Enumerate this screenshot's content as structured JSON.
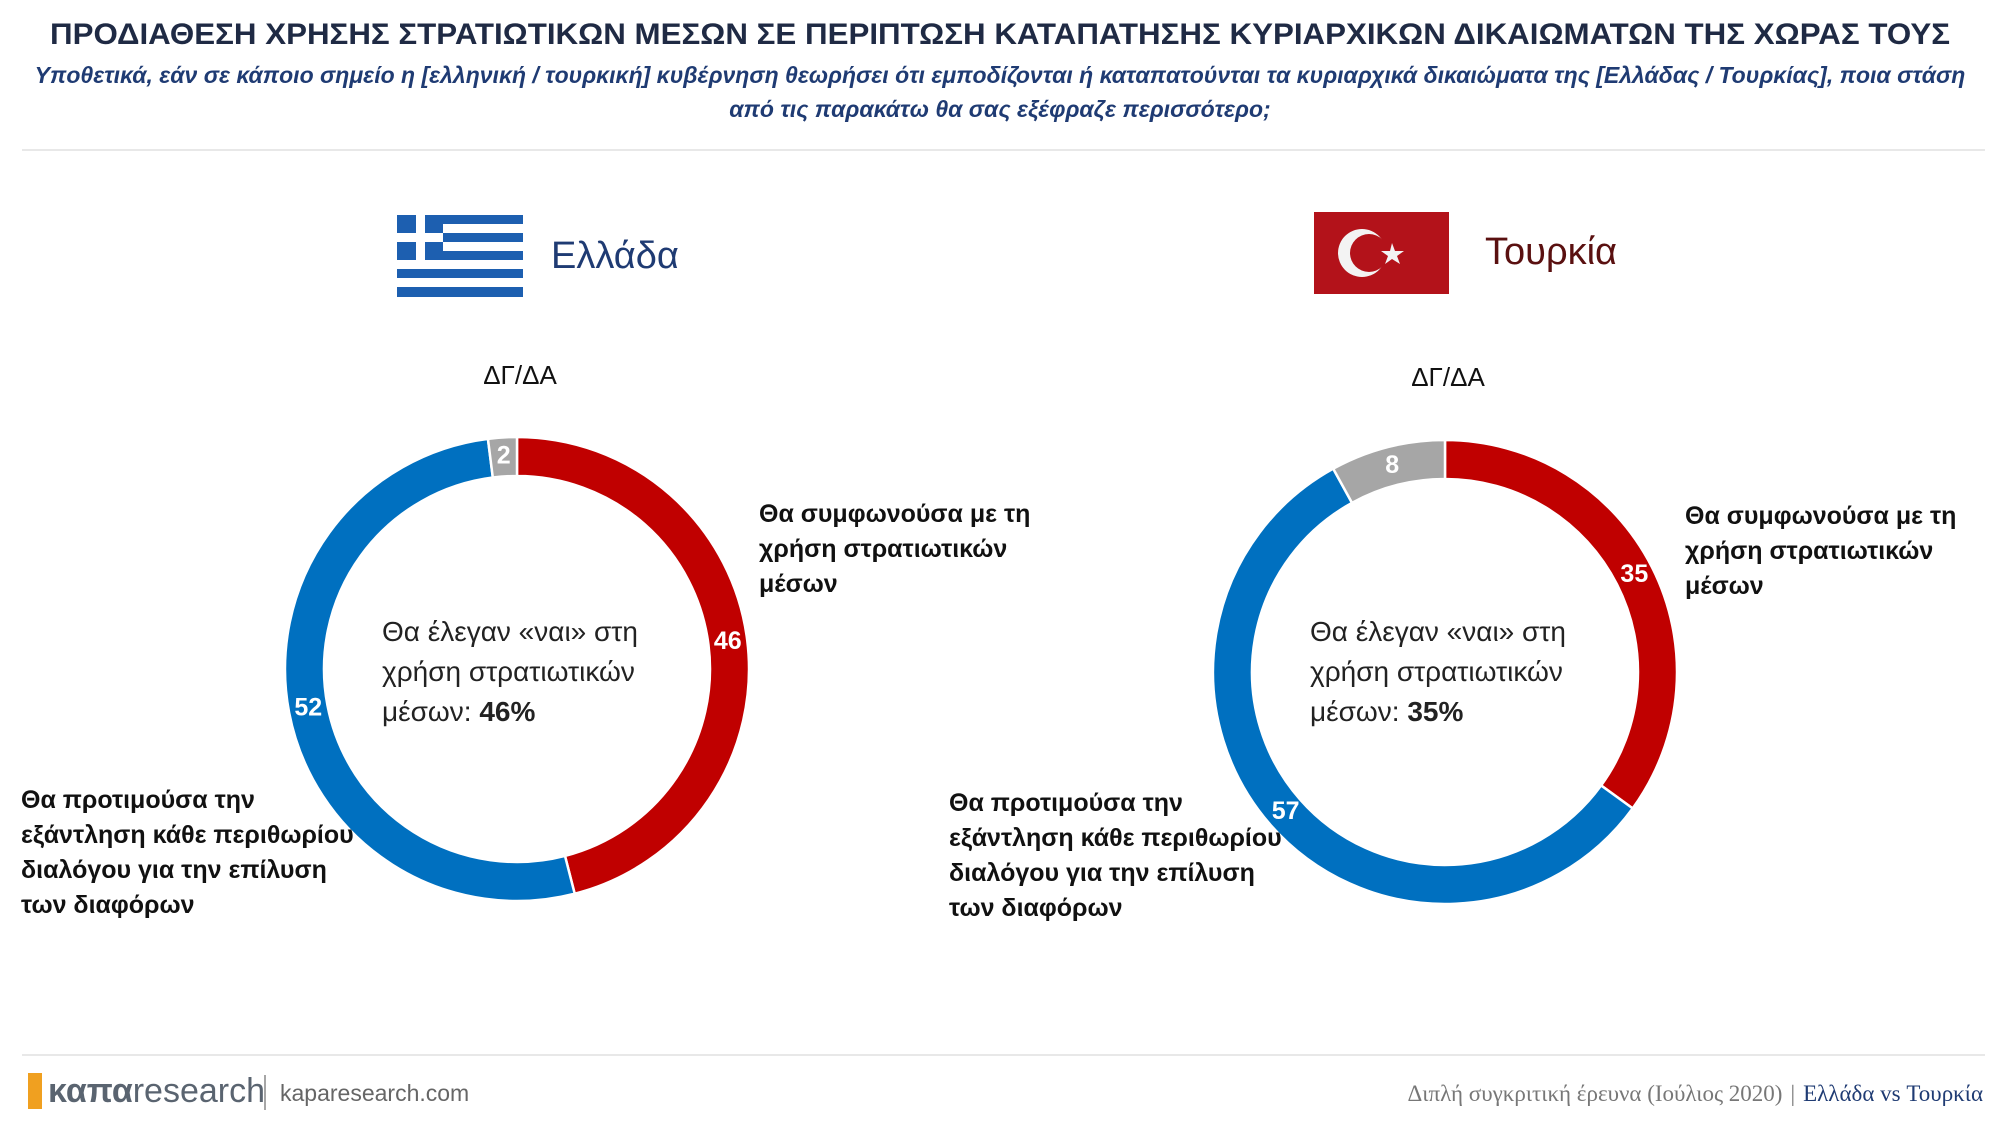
{
  "header": {
    "title": "ΠΡΟΔΙΑΘΕΣΗ ΧΡΗΣΗΣ ΣΤΡΑΤΙΩΤΙΚΩΝ ΜΕΣΩΝ ΣΕ ΠΕΡΙΠΤΩΣΗ ΚΑΤΑΠΑΤΗΣΗΣ ΚΥΡΙΑΡΧΙΚΩΝ ΔΙΚΑΙΩΜΑΤΩΝ ΤΗΣ ΧΩΡΑΣ ΤΟΥΣ",
    "subtitle": "Υποθετικά, εάν σε κάποιο σημείο η [ελληνική / τουρκική] κυβέρνηση θεωρήσει ότι εμποδίζονται ή καταπατούνται τα κυριαρχικά δικαιώματα της [Ελλάδας / Τουρκίας], ποια στάση από τις παρακάτω θα σας εξέφραζε περισσότερο;"
  },
  "chart_data": [
    {
      "type": "pie",
      "title": "Ελλάδα",
      "categories": [
        "Θα συμφωνούσα με τη χρήση στρατιωτικών μέσων",
        "Θα προτιμούσα την εξάντληση κάθε περιθωρίου διαλόγου για την επίλυση των διαφόρων",
        "ΔΓ/ΔΑ"
      ],
      "values": [
        46,
        52,
        2
      ],
      "colors": [
        "#c00000",
        "#0070c0",
        "#a6a6a6"
      ],
      "center_text": "Θα έλεγαν «ναι» στη χρήση στρατιωτικών μέσων:",
      "center_value_label": "46%"
    },
    {
      "type": "pie",
      "title": "Τουρκία",
      "categories": [
        "Θα συμφωνούσα με τη χρήση στρατιωτικών μέσων",
        "Θα προτιμούσα την εξάντληση κάθε περιθωρίου διαλόγου για την επίλυση των διαφόρων",
        "ΔΓ/ΔΑ"
      ],
      "values": [
        35,
        57,
        8
      ],
      "colors": [
        "#c00000",
        "#0070c0",
        "#a6a6a6"
      ],
      "center_text": "Θα έλεγαν «ναι» στη χρήση στρατιωτικών μέσων:",
      "center_value_label": "35%"
    }
  ],
  "footer": {
    "logo_bold": "καπα",
    "logo_light": "research",
    "website": "kaparesearch.com",
    "survey": "Διπλή συγκριτική έρευνα (Ιούλιος 2020)",
    "separator": "|",
    "comparison": "Ελλάδα vs Τουρκία"
  }
}
